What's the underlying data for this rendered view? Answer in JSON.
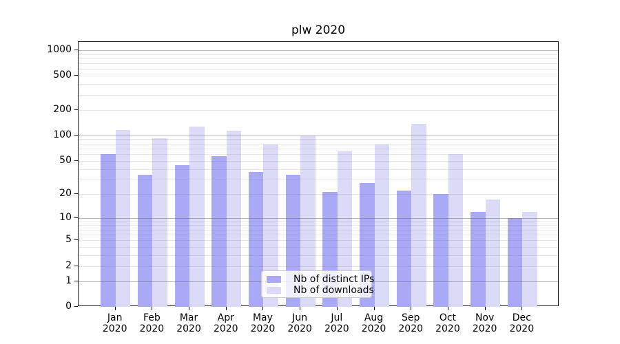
{
  "figure": {
    "title": "plw 2020"
  },
  "chart_data": {
    "type": "bar",
    "title": "plw 2020",
    "categories": [
      "Jan 2020",
      "Feb 2020",
      "Mar 2020",
      "Apr 2020",
      "May 2020",
      "Jun 2020",
      "Jul 2020",
      "Aug 2020",
      "Sep 2020",
      "Oct 2020",
      "Nov 2020",
      "Dec 2020"
    ],
    "series": [
      {
        "name": "Nb of distinct IPs",
        "color": "#a9a9f6",
        "values": [
          60,
          34,
          44,
          57,
          37,
          34,
          21,
          27,
          22,
          20,
          12,
          10
        ]
      },
      {
        "name": "Nb of downloads",
        "color": "#dbdbf8",
        "values": [
          115,
          92,
          127,
          113,
          78,
          100,
          65,
          78,
          138,
          60,
          17,
          12
        ]
      }
    ],
    "y_axis": {
      "scale": "log10(value+1)",
      "tick_values": [
        0,
        1,
        2,
        5,
        10,
        20,
        50,
        100,
        200,
        500,
        1000
      ],
      "top_tick_value": 1000
    },
    "grid": {
      "major_values": [
        1,
        10,
        100,
        1000
      ],
      "minor_decades": [
        1,
        10,
        100
      ]
    },
    "legend": {
      "position": "lower-center"
    }
  }
}
